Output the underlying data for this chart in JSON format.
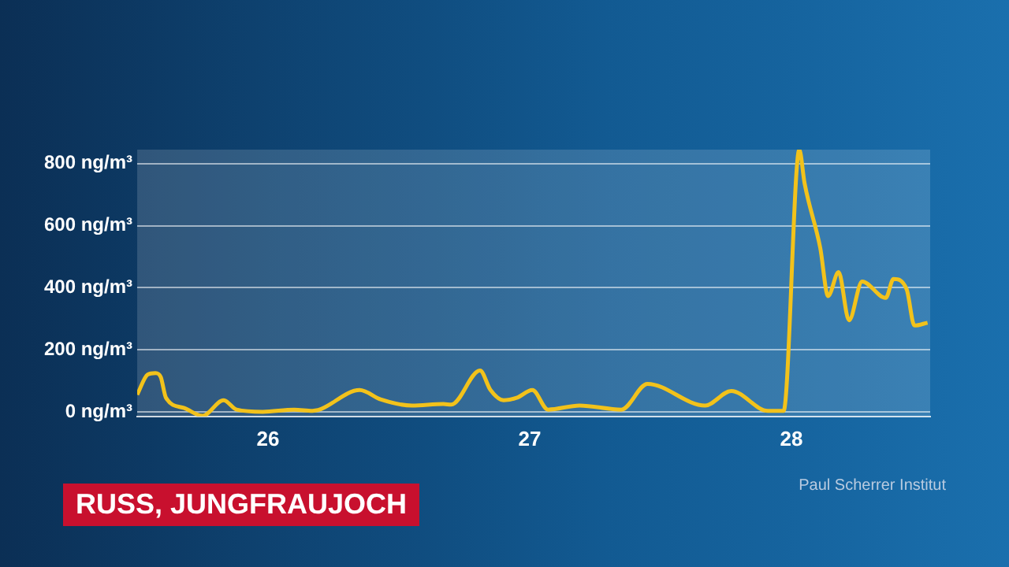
{
  "chart_data": {
    "type": "line",
    "title": "RUSS, JUNGFRAUJOCH",
    "annotations": [
      "Paul Scherrer Institut"
    ],
    "x": [
      25.5,
      25.54,
      25.57,
      25.59,
      25.61,
      25.68,
      25.75,
      25.83,
      25.88,
      25.98,
      26.1,
      26.17,
      26.35,
      26.43,
      26.55,
      26.67,
      26.7,
      26.81,
      26.85,
      26.9,
      26.95,
      27.01,
      27.07,
      27.19,
      27.35,
      27.45,
      27.67,
      27.77,
      27.91,
      27.97,
      28.03,
      28.05,
      28.11,
      28.14,
      28.18,
      28.22,
      28.27,
      28.36,
      28.39,
      28.44,
      28.47,
      28.52
    ],
    "series": [
      {
        "color": "#f2c21b",
        "values": [
          55,
          120,
          125,
          112,
          45,
          12,
          -13,
          37,
          7,
          0,
          7,
          3,
          70,
          40,
          20,
          25,
          23,
          133,
          70,
          37,
          45,
          70,
          7,
          20,
          7,
          90,
          20,
          67,
          3,
          3,
          845,
          737,
          528,
          373,
          450,
          295,
          420,
          367,
          428,
          395,
          278,
          287
        ]
      }
    ],
    "xlim": [
      25.5,
      28.53
    ],
    "xticks": [
      26,
      27,
      28
    ],
    "ylim": [
      -15,
      845
    ],
    "yticks": [
      {
        "value": 0,
        "label": "0 ng/m³"
      },
      {
        "value": 200,
        "label": "200 ng/m³"
      },
      {
        "value": 400,
        "label": "400 ng/m³"
      },
      {
        "value": 600,
        "label": "600 ng/m³"
      },
      {
        "value": 800,
        "label": "800 ng/m³"
      }
    ],
    "grid": "y",
    "legend": false,
    "marker": "none",
    "line_style": "solid"
  }
}
